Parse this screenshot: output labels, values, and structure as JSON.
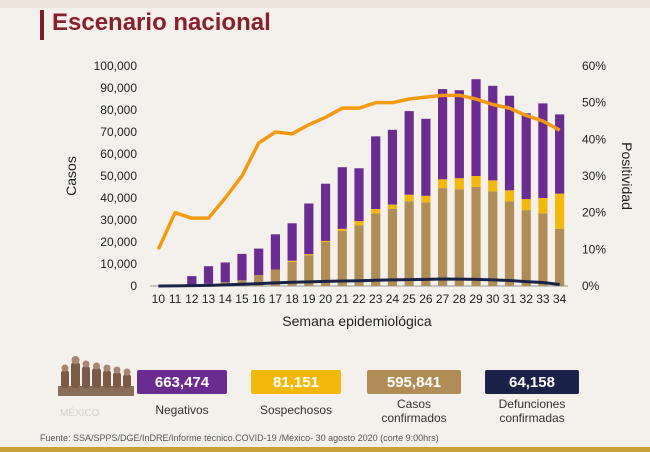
{
  "title": "Escenario nacional",
  "colors": {
    "negativos": "#6a2c91",
    "sospechosos": "#f2b80b",
    "confirmados": "#b08d57",
    "defunciones": "#1a2347",
    "positividad": "#f39a12",
    "title": "#8a1f2e"
  },
  "chart_data": {
    "type": "bar",
    "stacked": true,
    "xlabel": "Semana epidemiológica",
    "ylabel": "Casos",
    "y2label": "Positividad",
    "ylim": [
      0,
      100000
    ],
    "y2lim": [
      0,
      60
    ],
    "yticks": [
      "0",
      "10,000",
      "20,000",
      "30,000",
      "40,000",
      "50,000",
      "60,000",
      "70,000",
      "80,000",
      "90,000",
      "100,000"
    ],
    "y2ticks": [
      "0%",
      "10%",
      "20%",
      "30%",
      "40%",
      "50%",
      "60%"
    ],
    "categories": [
      "10",
      "11",
      "12",
      "13",
      "14",
      "15",
      "16",
      "17",
      "18",
      "19",
      "20",
      "21",
      "22",
      "23",
      "24",
      "25",
      "26",
      "27",
      "28",
      "29",
      "30",
      "31",
      "32",
      "33",
      "34"
    ],
    "series": [
      {
        "name": "Casos confirmados",
        "values": [
          0,
          100,
          500,
          1000,
          1700,
          2600,
          5000,
          7500,
          11000,
          14000,
          20000,
          25000,
          27500,
          33000,
          35000,
          38500,
          38000,
          44500,
          44000,
          45000,
          43000,
          38500,
          34500,
          33000,
          26000
        ]
      },
      {
        "name": "Sospechosos",
        "values": [
          0,
          0,
          0,
          0,
          0,
          0,
          0,
          0,
          500,
          500,
          500,
          1000,
          2000,
          2000,
          2000,
          3000,
          3000,
          4000,
          5000,
          5000,
          5000,
          5000,
          5000,
          7000,
          16000
        ]
      },
      {
        "name": "Negativos",
        "values": [
          0,
          500,
          4000,
          8000,
          9000,
          12000,
          12000,
          16000,
          17000,
          23000,
          26000,
          28000,
          24000,
          33000,
          34000,
          38000,
          35000,
          41000,
          40000,
          44000,
          43000,
          43000,
          39000,
          43000,
          36000
        ]
      },
      {
        "name": "Defunciones confirmadas",
        "type": "line",
        "values": [
          0,
          50,
          150,
          300,
          500,
          800,
          1100,
          1400,
          1700,
          1900,
          2100,
          2300,
          2400,
          2600,
          2800,
          2900,
          3000,
          3200,
          3100,
          3000,
          2800,
          2500,
          2000,
          1600,
          700
        ]
      },
      {
        "name": "Positividad",
        "type": "line",
        "axis": "y2",
        "values": [
          10,
          20,
          18.5,
          18.5,
          24,
          30,
          39,
          42,
          41.5,
          44,
          46,
          48.5,
          48.5,
          50,
          50,
          51,
          51.5,
          52,
          52,
          51,
          49.5,
          48.5,
          46.5,
          45,
          42.5
        ]
      }
    ]
  },
  "legend": [
    {
      "value": "663,474",
      "label": "Negativos",
      "color": "#6a2c91"
    },
    {
      "value": "81,151",
      "label": "Sospechosos",
      "color": "#f2b80b"
    },
    {
      "value": "595,841",
      "label": "Casos confirmados",
      "color": "#b08d57"
    },
    {
      "value": "64,158",
      "label": "Defunciones confirmadas",
      "color": "#1a2347"
    }
  ],
  "source": "Fuente: SSA/SPPS/DGE/InDRE/Informe técnico.COVID-19 /México- 30 agosto 2020 (corte 9:00hrs)"
}
